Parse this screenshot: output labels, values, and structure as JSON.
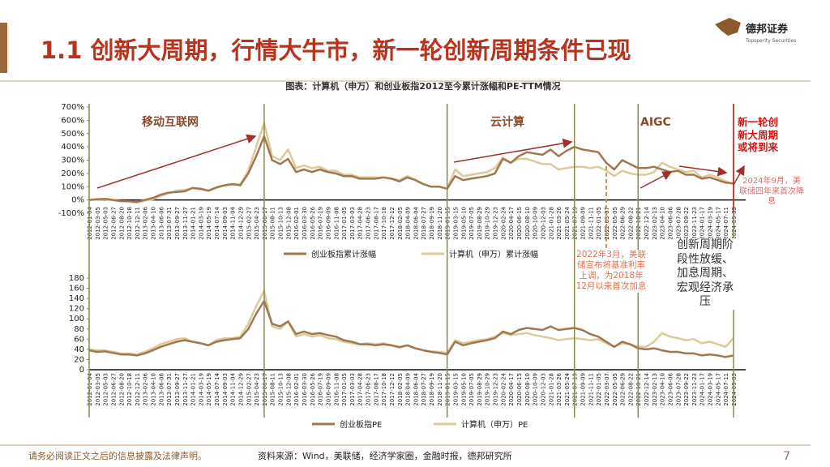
{
  "header": {
    "title": "1.1 创新大周期，行情大牛市，新一轮创新周期条件已现",
    "logo": "德邦证券",
    "logo_en": "Topsperity Securities",
    "caption": "图表：计算机（申万）和创业板指2012至今累计涨幅和PE-TTM情况"
  },
  "chart_data": [
    {
      "type": "line",
      "categories": [
        "2012-01-04",
        "2012-03-05",
        "2012-05-03",
        "2012-06-27",
        "2012-08-20",
        "2012-10-18",
        "2012-12-11",
        "2013-02-06",
        "2013-04-10",
        "2013-06-06",
        "2013-07-31",
        "2013-09-27",
        "2013-11-27",
        "2014-01-21",
        "2014-03-19",
        "2014-05-19",
        "2014-07-14",
        "2014-09-03",
        "2014-11-04",
        "2014-12-29",
        "2015-02-27",
        "2015-04-23",
        "2015-06-17",
        "2015-08-11",
        "2015-10-13",
        "2015-12-08",
        "2016-02-01",
        "2016-03-30",
        "2016-05-26",
        "2016-07-19",
        "2016-09-09",
        "2016-11-08",
        "2017-01-05",
        "2017-03-03",
        "2017-04-28",
        "2017-06-23",
        "2017-08-17",
        "2017-10-18",
        "2017-12-12",
        "2018-02-05",
        "2018-04-09",
        "2018-06-04",
        "2018-07-27",
        "2018-09-19",
        "2018-11-20",
        "2019-01-15",
        "2019-03-15",
        "2019-05-10",
        "2019-07-05",
        "2019-08-29",
        "2019-10-29",
        "2019-12-23",
        "2020-02-24",
        "2020-04-17",
        "2020-06-15",
        "2020-08-10",
        "2020-10-09",
        "2020-12-03",
        "2021-01-28",
        "2021-03-26",
        "2021-05-24",
        "2021-07-19",
        "2021-09-09",
        "2021-11-11",
        "2022-01-05",
        "2022-03-07",
        "2022-05-05",
        "2022-06-29",
        "2022-08-22",
        "2022-10-21",
        "2022-12-14",
        "2023-02-13",
        "2023-04-10",
        "2023-06-06",
        "2023-07-28",
        "2023-09-22",
        "2023-11-23",
        "2024-01-17",
        "2024-03-19",
        "2024-05-17",
        "2024-07-11",
        "2024-09-03"
      ],
      "series": [
        {
          "name": "创业板指累计涨幅",
          "color": "#a07850",
          "values": [
            0,
            5,
            8,
            0,
            -8,
            -10,
            -15,
            0,
            15,
            40,
            55,
            60,
            65,
            90,
            85,
            70,
            95,
            110,
            120,
            110,
            200,
            330,
            480,
            300,
            270,
            310,
            210,
            230,
            210,
            230,
            210,
            200,
            180,
            180,
            160,
            160,
            160,
            170,
            160,
            140,
            170,
            150,
            120,
            100,
            100,
            85,
            180,
            150,
            160,
            170,
            180,
            200,
            310,
            280,
            330,
            360,
            350,
            340,
            380,
            330,
            370,
            400,
            380,
            370,
            360,
            280,
            230,
            300,
            270,
            240,
            240,
            250,
            230,
            210,
            220,
            190,
            190,
            160,
            170,
            150,
            130,
            125
          ]
        },
        {
          "name": "计算机（申万）累计涨幅",
          "color": "#dccb9a",
          "values": [
            0,
            3,
            5,
            -2,
            -10,
            -12,
            -18,
            -5,
            5,
            30,
            50,
            70,
            75,
            90,
            80,
            70,
            90,
            110,
            115,
            120,
            220,
            400,
            580,
            330,
            300,
            380,
            240,
            260,
            240,
            250,
            220,
            220,
            190,
            190,
            170,
            170,
            170,
            170,
            160,
            150,
            180,
            150,
            120,
            100,
            100,
            85,
            230,
            180,
            190,
            200,
            210,
            240,
            320,
            280,
            310,
            310,
            290,
            270,
            270,
            230,
            240,
            250,
            250,
            240,
            250,
            220,
            180,
            220,
            200,
            190,
            190,
            210,
            280,
            250,
            230,
            210,
            220,
            170,
            190,
            170,
            140,
            120
          ]
        }
      ],
      "ylim": [
        -100,
        700
      ],
      "yticks": [
        {
          "value": -100,
          "label": "-100%"
        },
        {
          "value": 0,
          "label": "0%"
        },
        {
          "value": 100,
          "label": "100%"
        },
        {
          "value": 200,
          "label": "200%"
        },
        {
          "value": 300,
          "label": "300%"
        },
        {
          "value": 400,
          "label": "400%"
        },
        {
          "value": 500,
          "label": "500%"
        },
        {
          "value": 600,
          "label": "600%"
        },
        {
          "value": 700,
          "label": "700%"
        }
      ],
      "annotations": [
        "移动互联网",
        "云计算",
        "AIGC",
        "新一轮创新大周期或将到来",
        "2024年9月，美联储四年来首次降息",
        "2022年3月，美联储宣布将基准利率上调，为2018年12月以来首次加息",
        "创新周期阶段性放缓、加息周期、宏观经济承压"
      ]
    },
    {
      "type": "line",
      "categories": [
        "2012-01-04",
        "2012-03-05",
        "2012-05-03",
        "2012-06-27",
        "2012-08-20",
        "2012-10-18",
        "2012-12-11",
        "2013-02-06",
        "2013-04-10",
        "2013-06-06",
        "2013-07-31",
        "2013-09-27",
        "2013-11-27",
        "2014-01-21",
        "2014-03-19",
        "2014-05-19",
        "2014-07-14",
        "2014-09-03",
        "2014-11-04",
        "2014-12-29",
        "2015-02-27",
        "2015-04-23",
        "2015-06-17",
        "2015-08-11",
        "2015-10-13",
        "2015-12-08",
        "2016-02-01",
        "2016-03-30",
        "2016-05-26",
        "2016-07-19",
        "2016-09-09",
        "2016-11-08",
        "2017-01-05",
        "2017-03-03",
        "2017-04-28",
        "2017-06-23",
        "2017-08-17",
        "2017-10-18",
        "2017-12-12",
        "2018-02-05",
        "2018-04-09",
        "2018-06-04",
        "2018-07-27",
        "2018-09-19",
        "2018-11-20",
        "2019-01-15",
        "2019-03-15",
        "2019-05-10",
        "2019-07-05",
        "2019-08-29",
        "2019-10-29",
        "2019-12-23",
        "2020-02-24",
        "2020-04-17",
        "2020-06-15",
        "2020-08-10",
        "2020-10-09",
        "2020-12-03",
        "2021-01-28",
        "2021-03-26",
        "2021-05-24",
        "2021-07-19",
        "2021-09-09",
        "2021-11-11",
        "2022-01-05",
        "2022-03-07",
        "2022-05-05",
        "2022-06-29",
        "2022-08-22",
        "2022-10-21",
        "2022-12-14",
        "2023-02-13",
        "2023-04-10",
        "2023-06-06",
        "2023-07-28",
        "2023-09-22",
        "2023-11-23",
        "2024-01-17",
        "2024-03-19",
        "2024-05-17",
        "2024-07-11",
        "2024-09-03"
      ],
      "series": [
        {
          "name": "创业板指PE",
          "color": "#a07850",
          "values": [
            38,
            35,
            36,
            33,
            30,
            30,
            28,
            32,
            38,
            45,
            50,
            55,
            58,
            55,
            52,
            48,
            55,
            58,
            60,
            62,
            80,
            110,
            135,
            90,
            85,
            95,
            70,
            75,
            70,
            72,
            68,
            65,
            58,
            55,
            50,
            50,
            48,
            50,
            48,
            44,
            48,
            42,
            38,
            35,
            33,
            30,
            55,
            48,
            52,
            55,
            58,
            62,
            75,
            70,
            78,
            82,
            80,
            78,
            85,
            78,
            80,
            82,
            78,
            70,
            65,
            55,
            45,
            55,
            50,
            42,
            40,
            42,
            38,
            35,
            35,
            32,
            32,
            28,
            30,
            28,
            25,
            28
          ]
        },
        {
          "name": "计算机（申万）PE",
          "color": "#dccb9a",
          "values": [
            40,
            38,
            38,
            35,
            32,
            32,
            30,
            35,
            42,
            50,
            55,
            60,
            62,
            55,
            52,
            48,
            58,
            62,
            62,
            65,
            90,
            125,
            155,
            85,
            80,
            95,
            65,
            70,
            65,
            68,
            62,
            60,
            55,
            52,
            50,
            52,
            50,
            52,
            48,
            45,
            48,
            42,
            38,
            36,
            35,
            33,
            58,
            52,
            55,
            58,
            60,
            65,
            72,
            68,
            70,
            72,
            68,
            65,
            62,
            58,
            60,
            62,
            60,
            58,
            60,
            52,
            45,
            52,
            50,
            45,
            45,
            55,
            72,
            65,
            62,
            58,
            60,
            52,
            55,
            50,
            45,
            62
          ]
        }
      ],
      "ylim": [
        0,
        180
      ],
      "yticks": [
        0,
        20,
        40,
        60,
        80,
        100,
        120,
        140,
        160,
        180
      ]
    }
  ],
  "footer": {
    "disclaimer": "请务必阅读正文之后的信息披露及法律声明。",
    "source": "资料来源：Wind，美联储，经济学家圈，金融时报，德邦研究所",
    "page": "7"
  }
}
